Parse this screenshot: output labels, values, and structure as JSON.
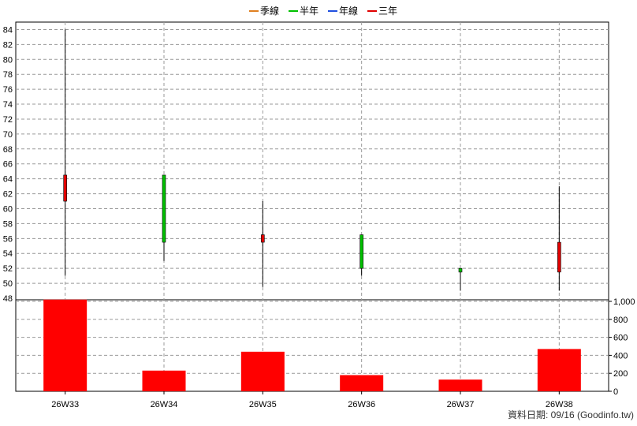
{
  "chart_data": {
    "type": "candlestick",
    "legend": [
      {
        "name": "季線",
        "color": "#e08020"
      },
      {
        "name": "半年",
        "color": "#00c000"
      },
      {
        "name": "年線",
        "color": "#2050e0"
      },
      {
        "name": "三年",
        "color": "#e00000"
      }
    ],
    "categories": [
      "26W33",
      "26W34",
      "26W35",
      "26W36",
      "26W37",
      "26W38"
    ],
    "candles": [
      {
        "open": 61.0,
        "high": 84.0,
        "low": 51.0,
        "close": 64.5
      },
      {
        "open": 64.5,
        "high": 64.5,
        "low": 53.0,
        "close": 55.5
      },
      {
        "open": 55.5,
        "high": 61.0,
        "low": 49.5,
        "close": 56.5
      },
      {
        "open": 56.5,
        "high": 56.5,
        "low": 51.0,
        "close": 52.0
      },
      {
        "open": 52.0,
        "high": 52.0,
        "low": 49.0,
        "close": 51.5
      },
      {
        "open": 51.5,
        "high": 63.0,
        "low": 49.0,
        "close": 55.5
      }
    ],
    "volume": [
      1020,
      230,
      440,
      180,
      130,
      470
    ],
    "price_axis": {
      "min": 48,
      "max": 85,
      "ticks": [
        48,
        50,
        52,
        54,
        56,
        58,
        60,
        62,
        64,
        66,
        68,
        70,
        72,
        74,
        76,
        78,
        80,
        82,
        84
      ]
    },
    "volume_axis": {
      "min": 0,
      "max": 1000,
      "ticks": [
        0,
        200,
        400,
        600,
        800,
        1000
      ],
      "tick_labels": [
        "0",
        "200",
        "400",
        "600",
        "800",
        "1,000"
      ]
    },
    "up_color": "#e00000",
    "down_color": "#00c000",
    "volume_color": "#ff0000",
    "grid": true
  },
  "footer": "資料日期: 09/16  (Goodinfo.tw)"
}
